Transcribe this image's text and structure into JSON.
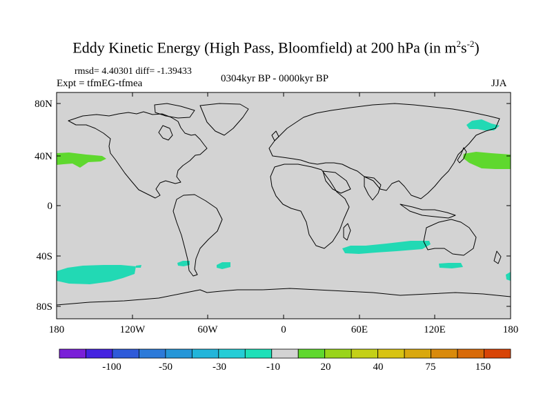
{
  "title": {
    "main": "Eddy Kinetic Energy (High Pass, Bloomfield) at 200 hPa (in m",
    "sup1": "2",
    "mid": "s",
    "sup2": "-2",
    "end": ")"
  },
  "stats": "rmsd= 4.40301 diff= -1.39433",
  "expt": "Expt = tfmEG-tfmea",
  "period": "0304kyr BP - 0000kyr BP",
  "season": "JJA",
  "lat_labels": [
    "80N",
    "40N",
    "0",
    "40S",
    "80S"
  ],
  "lon_labels": [
    "180",
    "120W",
    "60W",
    "0",
    "60E",
    "120E",
    "180"
  ],
  "colors": {
    "ocean_fill": "#d3d3d3",
    "coast": "#000000",
    "positive_green": "#5fd82e",
    "negative_teal": "#22d9b4"
  },
  "colorbar": {
    "swatches": [
      "#7a1fd8",
      "#4422e0",
      "#2e5ad9",
      "#2c7ad9",
      "#2596d8",
      "#22b5da",
      "#24cdd6",
      "#1ee0b8",
      "#d3d3d3",
      "#5fd82e",
      "#99d41a",
      "#c4d017",
      "#d8c312",
      "#d9a80e",
      "#d98a0b",
      "#d86a08",
      "#d84406"
    ],
    "labels": [
      "-100",
      "-50",
      "-30",
      "-10",
      "20",
      "40",
      "75",
      "150"
    ]
  }
}
